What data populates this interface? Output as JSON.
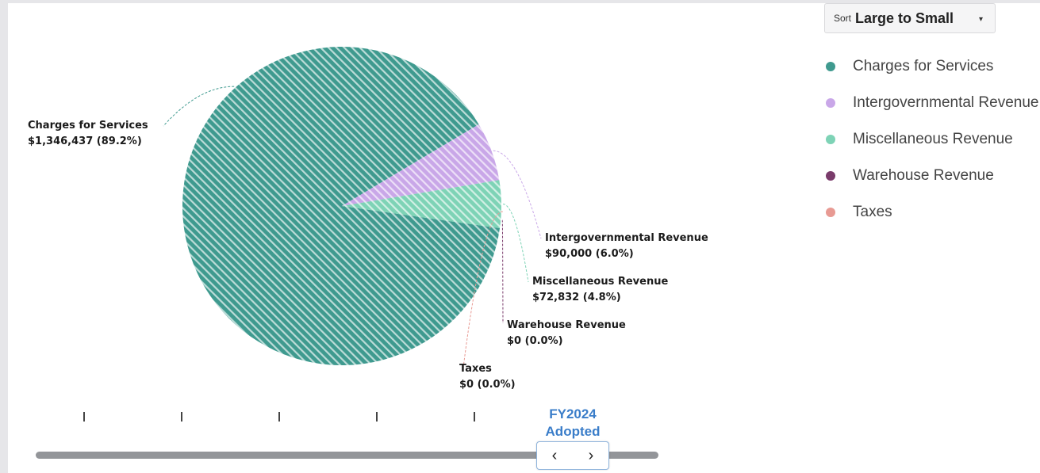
{
  "sort": {
    "prefix": "Sort",
    "value": "Large to Small",
    "caret": "▾"
  },
  "legend": [
    {
      "label": "Charges for Services",
      "color": "#3f9a8f"
    },
    {
      "label": "Intergovernmental Revenue",
      "color": "#c9a7e8"
    },
    {
      "label": "Miscellaneous Revenue",
      "color": "#7ed3b6"
    },
    {
      "label": "Warehouse Revenue",
      "color": "#7a3b6b"
    },
    {
      "label": "Taxes",
      "color": "#e89a93"
    }
  ],
  "chart_data": {
    "type": "pie",
    "slices": [
      {
        "name": "Charges for Services",
        "amount": "$1,346,437",
        "percent_label": "(89.2%)",
        "value": 1346437,
        "percent": 89.2,
        "color": "#3f9a8f"
      },
      {
        "name": "Intergovernmental Revenue",
        "amount": "$90,000",
        "percent_label": "(6.0%)",
        "value": 90000,
        "percent": 6.0,
        "color": "#c9a7e8"
      },
      {
        "name": "Miscellaneous Revenue",
        "amount": "$72,832",
        "percent_label": "(4.8%)",
        "value": 72832,
        "percent": 4.8,
        "color": "#7ed3b6"
      },
      {
        "name": "Warehouse Revenue",
        "amount": "$0",
        "percent_label": "(0.0%)",
        "value": 0,
        "percent": 0.0,
        "color": "#7a3b6b"
      },
      {
        "name": "Taxes",
        "amount": "$0",
        "percent_label": "(0.0%)",
        "value": 0,
        "percent": 0.0,
        "color": "#e89a93"
      }
    ],
    "sort_order": "Large to Small"
  },
  "timeline": {
    "selected_fiscal_year": "FY2024",
    "selected_stage": "Adopted",
    "prev_label": "‹",
    "next_label": "›"
  }
}
